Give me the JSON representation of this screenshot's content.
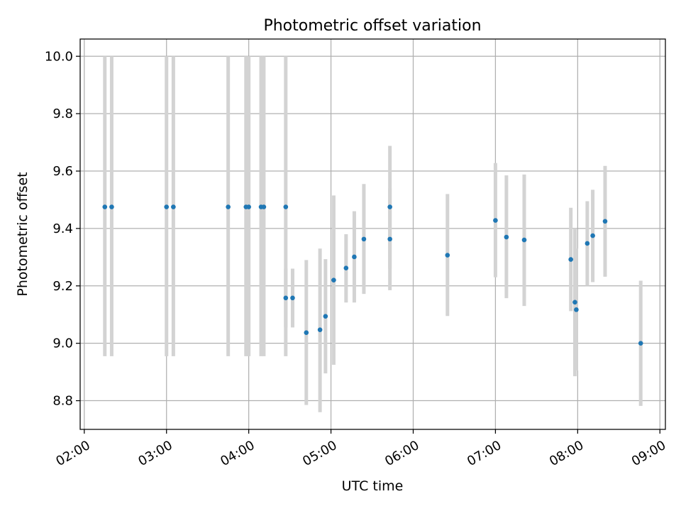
{
  "chart_data": {
    "type": "scatter",
    "title": "Photometric offset variation",
    "xlabel": "UTC time",
    "ylabel": "Photometric offset",
    "x_ticks": [
      "02:00",
      "03:00",
      "04:00",
      "05:00",
      "06:00",
      "07:00",
      "08:00",
      "09:00"
    ],
    "y_ticks": [
      "8.8",
      "9.0",
      "9.2",
      "9.4",
      "9.6",
      "9.8",
      "10.0"
    ],
    "xlim": [
      "01:57",
      "09:04"
    ],
    "ylim": [
      8.7,
      10.06
    ],
    "grid": true,
    "marker_color": "#1f77b4",
    "errorbar_color": "#d3d3d3",
    "points": [
      {
        "t": "02:15",
        "y": 9.475,
        "lo": 8.955,
        "hi": 10.0
      },
      {
        "t": "02:20",
        "y": 9.475,
        "lo": 8.955,
        "hi": 10.0
      },
      {
        "t": "03:00",
        "y": 9.475,
        "lo": 8.955,
        "hi": 10.0
      },
      {
        "t": "03:05",
        "y": 9.475,
        "lo": 8.955,
        "hi": 10.0
      },
      {
        "t": "03:45",
        "y": 9.475,
        "lo": 8.955,
        "hi": 10.0
      },
      {
        "t": "03:58",
        "y": 9.475,
        "lo": 8.955,
        "hi": 10.0
      },
      {
        "t": "04:00",
        "y": 9.475,
        "lo": 8.955,
        "hi": 10.0
      },
      {
        "t": "04:09",
        "y": 9.475,
        "lo": 8.955,
        "hi": 10.0
      },
      {
        "t": "04:11",
        "y": 9.475,
        "lo": 8.955,
        "hi": 10.0
      },
      {
        "t": "04:27",
        "y": 9.475,
        "lo": 8.955,
        "hi": 10.0
      },
      {
        "t": "04:27",
        "y": 9.158,
        "lo": 9.055,
        "hi": 9.26
      },
      {
        "t": "04:32",
        "y": 9.158,
        "lo": 9.055,
        "hi": 9.26
      },
      {
        "t": "04:42",
        "y": 9.037,
        "lo": 8.785,
        "hi": 9.29
      },
      {
        "t": "04:52",
        "y": 9.047,
        "lo": 8.76,
        "hi": 9.33
      },
      {
        "t": "04:56",
        "y": 9.094,
        "lo": 8.895,
        "hi": 9.293
      },
      {
        "t": "05:02",
        "y": 9.22,
        "lo": 8.925,
        "hi": 9.515
      },
      {
        "t": "05:11",
        "y": 9.262,
        "lo": 9.142,
        "hi": 9.38
      },
      {
        "t": "05:17",
        "y": 9.301,
        "lo": 9.142,
        "hi": 9.46
      },
      {
        "t": "05:24",
        "y": 9.363,
        "lo": 9.172,
        "hi": 9.555
      },
      {
        "t": "05:43",
        "y": 9.363,
        "lo": 9.185,
        "hi": 9.54
      },
      {
        "t": "05:43",
        "y": 9.475,
        "lo": 9.26,
        "hi": 9.688
      },
      {
        "t": "06:25",
        "y": 9.307,
        "lo": 9.095,
        "hi": 9.52
      },
      {
        "t": "07:00",
        "y": 9.428,
        "lo": 9.23,
        "hi": 9.628
      },
      {
        "t": "07:08",
        "y": 9.37,
        "lo": 9.157,
        "hi": 9.585
      },
      {
        "t": "07:21",
        "y": 9.36,
        "lo": 9.13,
        "hi": 9.588
      },
      {
        "t": "07:55",
        "y": 9.292,
        "lo": 9.112,
        "hi": 9.472
      },
      {
        "t": "07:58",
        "y": 9.143,
        "lo": 8.885,
        "hi": 9.4
      },
      {
        "t": "07:59",
        "y": 9.117,
        "lo": 8.905,
        "hi": 9.33
      },
      {
        "t": "08:07",
        "y": 9.348,
        "lo": 9.2,
        "hi": 9.495
      },
      {
        "t": "08:11",
        "y": 9.375,
        "lo": 9.213,
        "hi": 9.535
      },
      {
        "t": "08:20",
        "y": 9.425,
        "lo": 9.232,
        "hi": 9.618
      },
      {
        "t": "08:46",
        "y": 9.0,
        "lo": 8.782,
        "hi": 9.218
      }
    ]
  }
}
